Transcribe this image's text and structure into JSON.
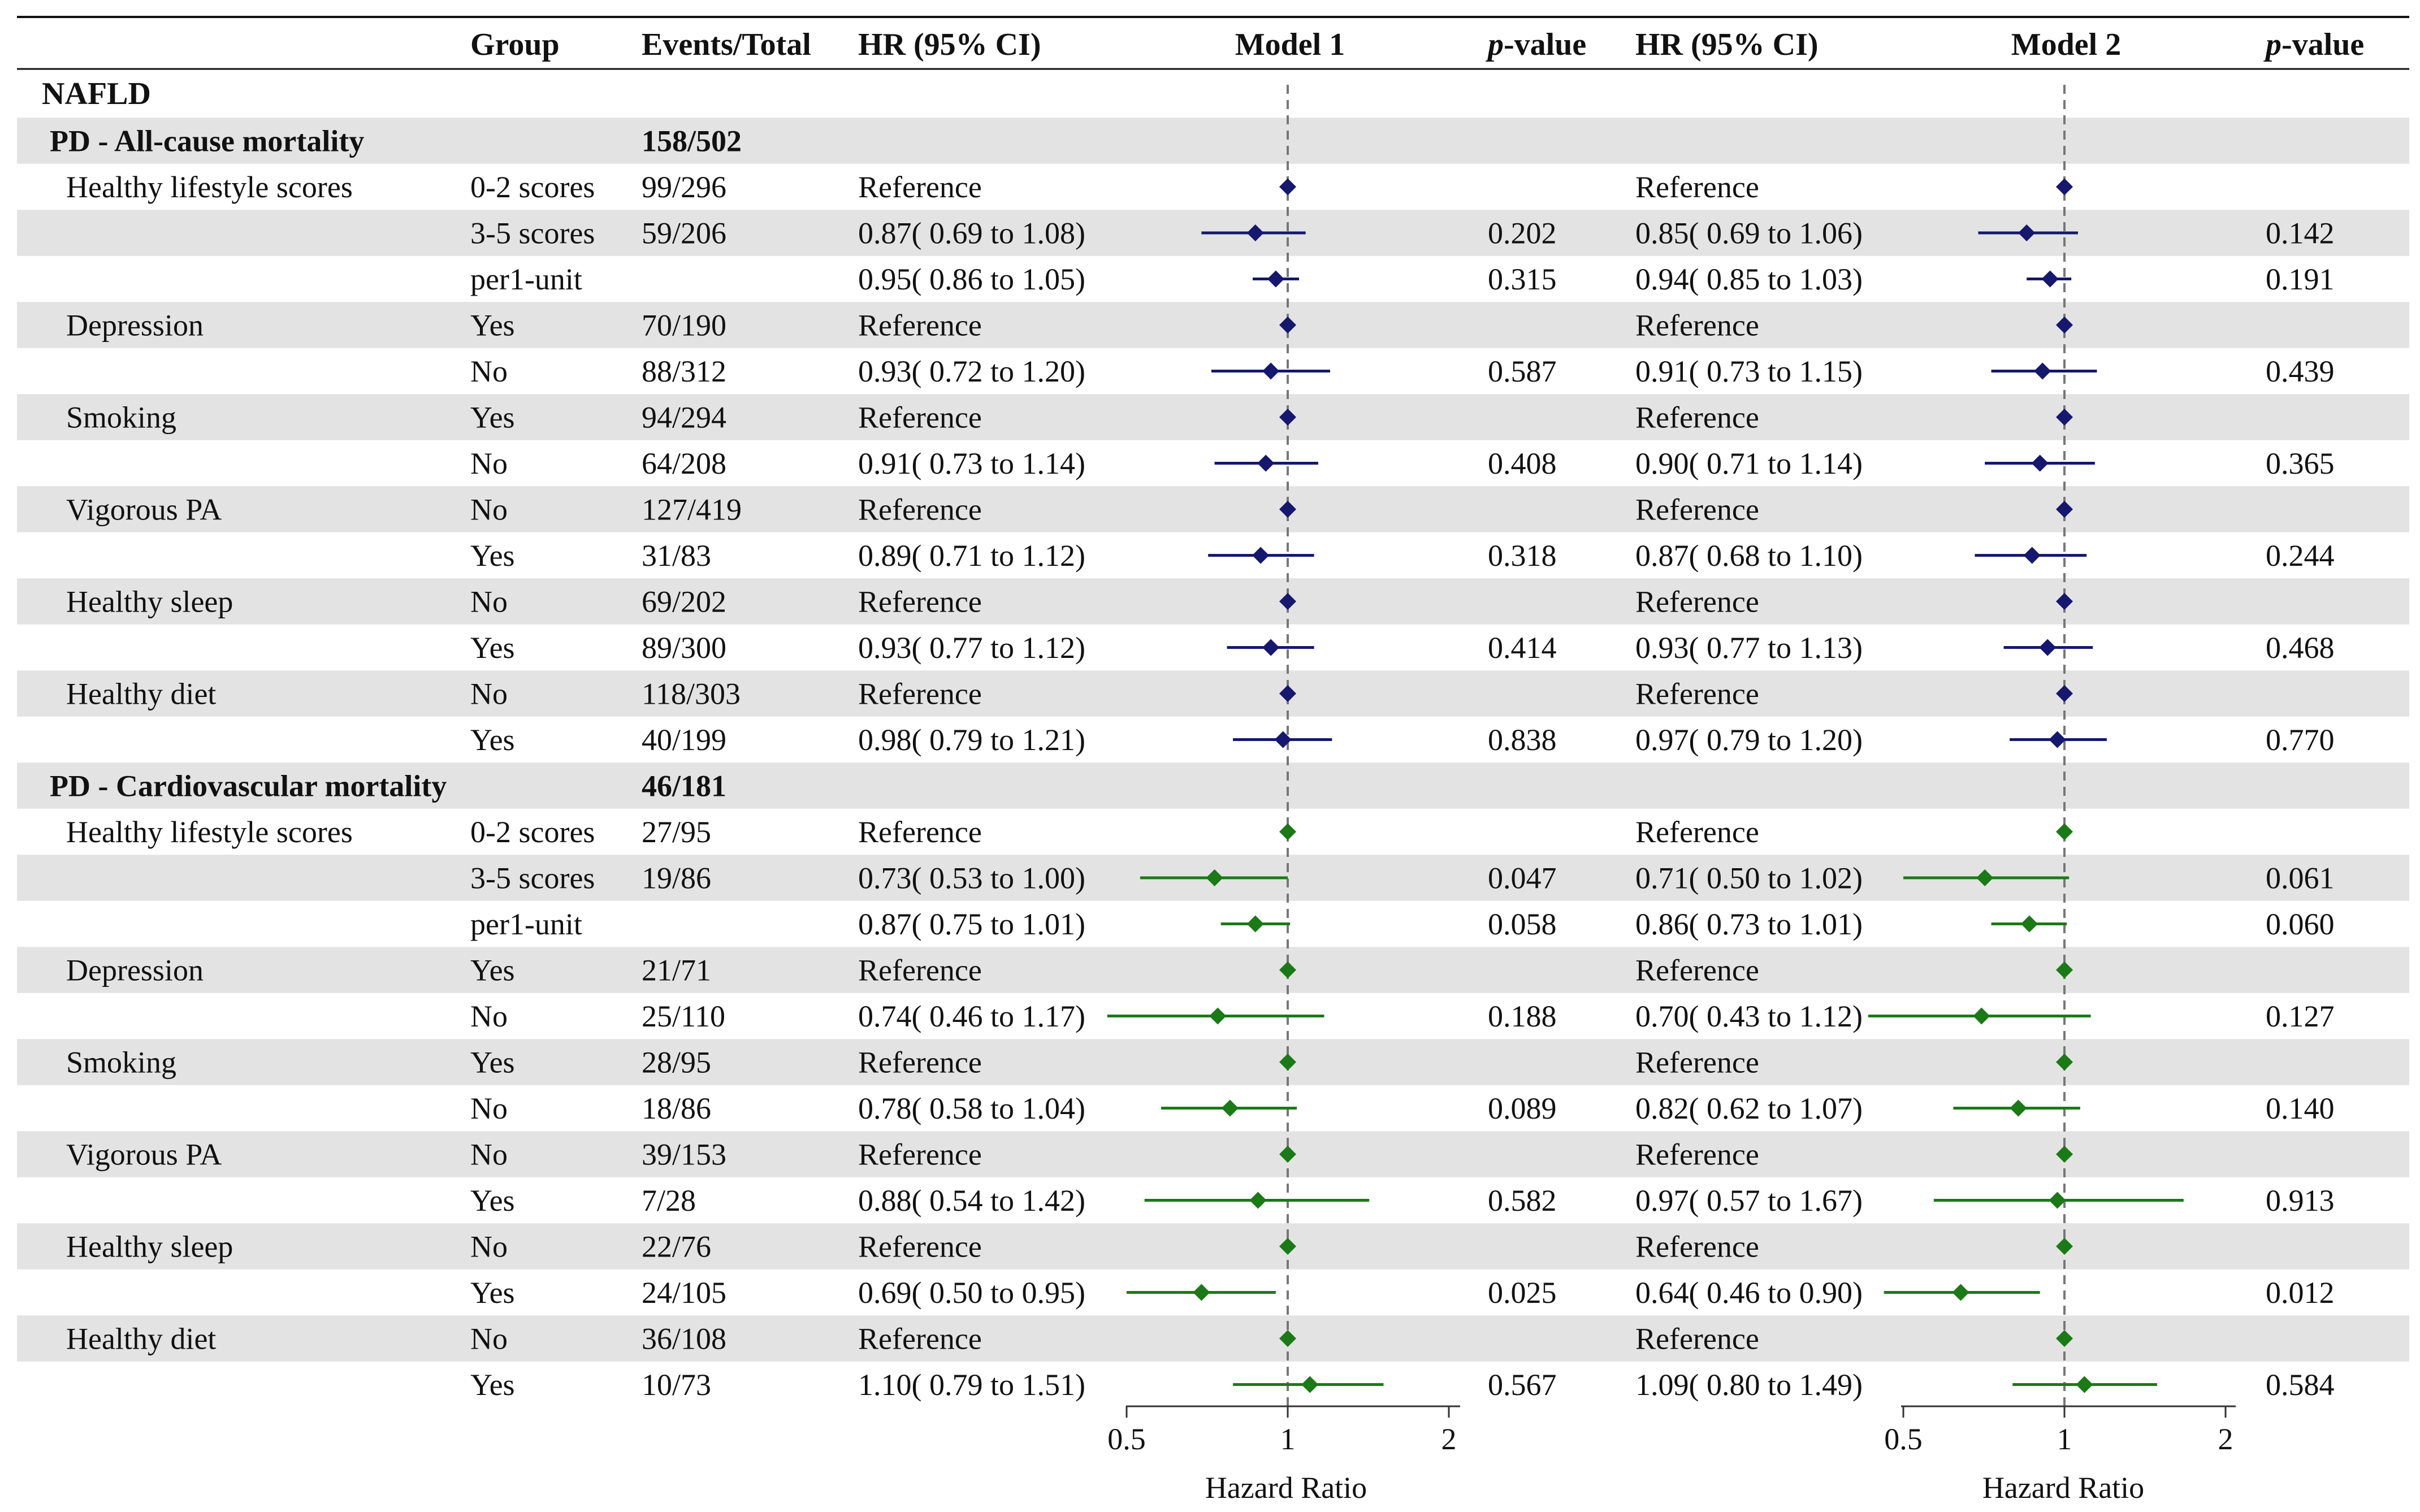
{
  "header": {
    "group": "Group",
    "events_total": "Events/Total",
    "hr_ci_1": "HR (95% CI)",
    "model_1": "Model 1",
    "pvalue_1_italic": "p",
    "pvalue_1_rest": "-value",
    "hr_ci_2": "HR (95% CI)",
    "model_2": "Model 2",
    "pvalue_2_italic": "p",
    "pvalue_2_rest": "-value"
  },
  "axis": {
    "label_1": "Hazard Ratio",
    "label_2": "Hazard Ratio",
    "ticks": [
      "0.5",
      "1",
      "2"
    ]
  },
  "colors": {
    "all_cause": "#15186e",
    "cardiovascular": "#1a7a16",
    "band": "#e3e3e3",
    "reference_line": "#777777"
  },
  "chart_data": {
    "type": "forest",
    "title": "NAFLD",
    "xlabel": "Hazard Ratio",
    "x_scale": "log2",
    "xlim": [
      0.5,
      2
    ],
    "reference_value": 1,
    "models": [
      "Model 1",
      "Model 2"
    ],
    "sections": [
      {
        "name": "PD - All-cause mortality",
        "events_total": "158/502",
        "color_key": "all_cause",
        "rows": [
          {
            "variable": "Healthy lifestyle scores",
            "group": "0-2 scores",
            "events": "99/296",
            "m1": {
              "text": "Reference",
              "hr": 1,
              "lo": null,
              "hi": null,
              "p": ""
            },
            "m2": {
              "text": "Reference",
              "hr": 1,
              "lo": null,
              "hi": null,
              "p": ""
            }
          },
          {
            "variable": "",
            "group": "3-5 scores",
            "events": "59/206",
            "m1": {
              "text": "0.87( 0.69 to 1.08)",
              "hr": 0.87,
              "lo": 0.69,
              "hi": 1.08,
              "p": "0.202"
            },
            "m2": {
              "text": "0.85( 0.69 to 1.06)",
              "hr": 0.85,
              "lo": 0.69,
              "hi": 1.06,
              "p": "0.142"
            }
          },
          {
            "variable": "",
            "group": "per1-unit",
            "events": "",
            "m1": {
              "text": "0.95( 0.86 to 1.05)",
              "hr": 0.95,
              "lo": 0.86,
              "hi": 1.05,
              "p": "0.315"
            },
            "m2": {
              "text": "0.94( 0.85 to 1.03)",
              "hr": 0.94,
              "lo": 0.85,
              "hi": 1.03,
              "p": "0.191"
            }
          },
          {
            "variable": "Depression",
            "group": "Yes",
            "events": "70/190",
            "m1": {
              "text": "Reference",
              "hr": 1,
              "lo": null,
              "hi": null,
              "p": ""
            },
            "m2": {
              "text": "Reference",
              "hr": 1,
              "lo": null,
              "hi": null,
              "p": ""
            }
          },
          {
            "variable": "",
            "group": "No",
            "events": "88/312",
            "m1": {
              "text": "0.93( 0.72 to 1.20)",
              "hr": 0.93,
              "lo": 0.72,
              "hi": 1.2,
              "p": "0.587"
            },
            "m2": {
              "text": "0.91( 0.73 to 1.15)",
              "hr": 0.91,
              "lo": 0.73,
              "hi": 1.15,
              "p": "0.439"
            }
          },
          {
            "variable": "Smoking",
            "group": "Yes",
            "events": "94/294",
            "m1": {
              "text": "Reference",
              "hr": 1,
              "lo": null,
              "hi": null,
              "p": ""
            },
            "m2": {
              "text": "Reference",
              "hr": 1,
              "lo": null,
              "hi": null,
              "p": ""
            }
          },
          {
            "variable": "",
            "group": "No",
            "events": "64/208",
            "m1": {
              "text": "0.91( 0.73 to 1.14)",
              "hr": 0.91,
              "lo": 0.73,
              "hi": 1.14,
              "p": "0.408"
            },
            "m2": {
              "text": "0.90( 0.71 to 1.14)",
              "hr": 0.9,
              "lo": 0.71,
              "hi": 1.14,
              "p": "0.365"
            }
          },
          {
            "variable": "Vigorous PA",
            "group": "No",
            "events": "127/419",
            "m1": {
              "text": "Reference",
              "hr": 1,
              "lo": null,
              "hi": null,
              "p": ""
            },
            "m2": {
              "text": "Reference",
              "hr": 1,
              "lo": null,
              "hi": null,
              "p": ""
            }
          },
          {
            "variable": "",
            "group": "Yes",
            "events": "31/83",
            "m1": {
              "text": "0.89( 0.71 to 1.12)",
              "hr": 0.89,
              "lo": 0.71,
              "hi": 1.12,
              "p": "0.318"
            },
            "m2": {
              "text": "0.87( 0.68 to 1.10)",
              "hr": 0.87,
              "lo": 0.68,
              "hi": 1.1,
              "p": "0.244"
            }
          },
          {
            "variable": "Healthy sleep",
            "group": "No",
            "events": "69/202",
            "m1": {
              "text": "Reference",
              "hr": 1,
              "lo": null,
              "hi": null,
              "p": ""
            },
            "m2": {
              "text": "Reference",
              "hr": 1,
              "lo": null,
              "hi": null,
              "p": ""
            }
          },
          {
            "variable": "",
            "group": "Yes",
            "events": "89/300",
            "m1": {
              "text": "0.93( 0.77 to 1.12)",
              "hr": 0.93,
              "lo": 0.77,
              "hi": 1.12,
              "p": "0.414"
            },
            "m2": {
              "text": "0.93( 0.77 to 1.13)",
              "hr": 0.93,
              "lo": 0.77,
              "hi": 1.13,
              "p": "0.468"
            }
          },
          {
            "variable": "Healthy diet",
            "group": "No",
            "events": "118/303",
            "m1": {
              "text": "Reference",
              "hr": 1,
              "lo": null,
              "hi": null,
              "p": ""
            },
            "m2": {
              "text": "Reference",
              "hr": 1,
              "lo": null,
              "hi": null,
              "p": ""
            }
          },
          {
            "variable": "",
            "group": "Yes",
            "events": "40/199",
            "m1": {
              "text": "0.98( 0.79 to 1.21)",
              "hr": 0.98,
              "lo": 0.79,
              "hi": 1.21,
              "p": "0.838"
            },
            "m2": {
              "text": "0.97( 0.79 to 1.20)",
              "hr": 0.97,
              "lo": 0.79,
              "hi": 1.2,
              "p": "0.770"
            }
          }
        ]
      },
      {
        "name": "PD - Cardiovascular mortality",
        "events_total": "46/181",
        "color_key": "cardiovascular",
        "rows": [
          {
            "variable": "Healthy lifestyle scores",
            "group": "0-2 scores",
            "events": "27/95",
            "m1": {
              "text": "Reference",
              "hr": 1,
              "lo": null,
              "hi": null,
              "p": ""
            },
            "m2": {
              "text": "Reference",
              "hr": 1,
              "lo": null,
              "hi": null,
              "p": ""
            }
          },
          {
            "variable": "",
            "group": "3-5 scores",
            "events": "19/86",
            "m1": {
              "text": "0.73( 0.53 to 1.00)",
              "hr": 0.73,
              "lo": 0.53,
              "hi": 1.0,
              "p": "0.047"
            },
            "m2": {
              "text": "0.71( 0.50 to 1.02)",
              "hr": 0.71,
              "lo": 0.5,
              "hi": 1.02,
              "p": "0.061"
            }
          },
          {
            "variable": "",
            "group": "per1-unit",
            "events": "",
            "m1": {
              "text": "0.87( 0.75 to 1.01)",
              "hr": 0.87,
              "lo": 0.75,
              "hi": 1.01,
              "p": "0.058"
            },
            "m2": {
              "text": "0.86( 0.73 to 1.01)",
              "hr": 0.86,
              "lo": 0.73,
              "hi": 1.01,
              "p": "0.060"
            }
          },
          {
            "variable": "Depression",
            "group": "Yes",
            "events": "21/71",
            "m1": {
              "text": "Reference",
              "hr": 1,
              "lo": null,
              "hi": null,
              "p": ""
            },
            "m2": {
              "text": "Reference",
              "hr": 1,
              "lo": null,
              "hi": null,
              "p": ""
            }
          },
          {
            "variable": "",
            "group": "No",
            "events": "25/110",
            "m1": {
              "text": "0.74( 0.46 to 1.17)",
              "hr": 0.74,
              "lo": 0.46,
              "hi": 1.17,
              "p": "0.188"
            },
            "m2": {
              "text": "0.70( 0.43 to 1.12)",
              "hr": 0.7,
              "lo": 0.43,
              "hi": 1.12,
              "p": "0.127"
            }
          },
          {
            "variable": "Smoking",
            "group": "Yes",
            "events": "28/95",
            "m1": {
              "text": "Reference",
              "hr": 1,
              "lo": null,
              "hi": null,
              "p": ""
            },
            "m2": {
              "text": "Reference",
              "hr": 1,
              "lo": null,
              "hi": null,
              "p": ""
            }
          },
          {
            "variable": "",
            "group": "No",
            "events": "18/86",
            "m1": {
              "text": "0.78( 0.58 to 1.04)",
              "hr": 0.78,
              "lo": 0.58,
              "hi": 1.04,
              "p": "0.089"
            },
            "m2": {
              "text": "0.82( 0.62 to 1.07)",
              "hr": 0.82,
              "lo": 0.62,
              "hi": 1.07,
              "p": "0.140"
            }
          },
          {
            "variable": "Vigorous PA",
            "group": "No",
            "events": "39/153",
            "m1": {
              "text": "Reference",
              "hr": 1,
              "lo": null,
              "hi": null,
              "p": ""
            },
            "m2": {
              "text": "Reference",
              "hr": 1,
              "lo": null,
              "hi": null,
              "p": ""
            }
          },
          {
            "variable": "",
            "group": "Yes",
            "events": "7/28",
            "m1": {
              "text": "0.88( 0.54 to 1.42)",
              "hr": 0.88,
              "lo": 0.54,
              "hi": 1.42,
              "p": "0.582"
            },
            "m2": {
              "text": "0.97( 0.57 to 1.67)",
              "hr": 0.97,
              "lo": 0.57,
              "hi": 1.67,
              "p": "0.913"
            }
          },
          {
            "variable": "Healthy sleep",
            "group": "No",
            "events": "22/76",
            "m1": {
              "text": "Reference",
              "hr": 1,
              "lo": null,
              "hi": null,
              "p": ""
            },
            "m2": {
              "text": "Reference",
              "hr": 1,
              "lo": null,
              "hi": null,
              "p": ""
            }
          },
          {
            "variable": "",
            "group": "Yes",
            "events": "24/105",
            "m1": {
              "text": "0.69( 0.50 to 0.95)",
              "hr": 0.69,
              "lo": 0.5,
              "hi": 0.95,
              "p": "0.025"
            },
            "m2": {
              "text": "0.64( 0.46 to 0.90)",
              "hr": 0.64,
              "lo": 0.46,
              "hi": 0.9,
              "p": "0.012"
            }
          },
          {
            "variable": "Healthy diet",
            "group": "No",
            "events": "36/108",
            "m1": {
              "text": "Reference",
              "hr": 1,
              "lo": null,
              "hi": null,
              "p": ""
            },
            "m2": {
              "text": "Reference",
              "hr": 1,
              "lo": null,
              "hi": null,
              "p": ""
            }
          },
          {
            "variable": "",
            "group": "Yes",
            "events": "10/73",
            "m1": {
              "text": "1.10( 0.79 to 1.51)",
              "hr": 1.1,
              "lo": 0.79,
              "hi": 1.51,
              "p": "0.567"
            },
            "m2": {
              "text": "1.09( 0.80 to 1.49)",
              "hr": 1.09,
              "lo": 0.8,
              "hi": 1.49,
              "p": "0.584"
            }
          }
        ]
      }
    ]
  }
}
